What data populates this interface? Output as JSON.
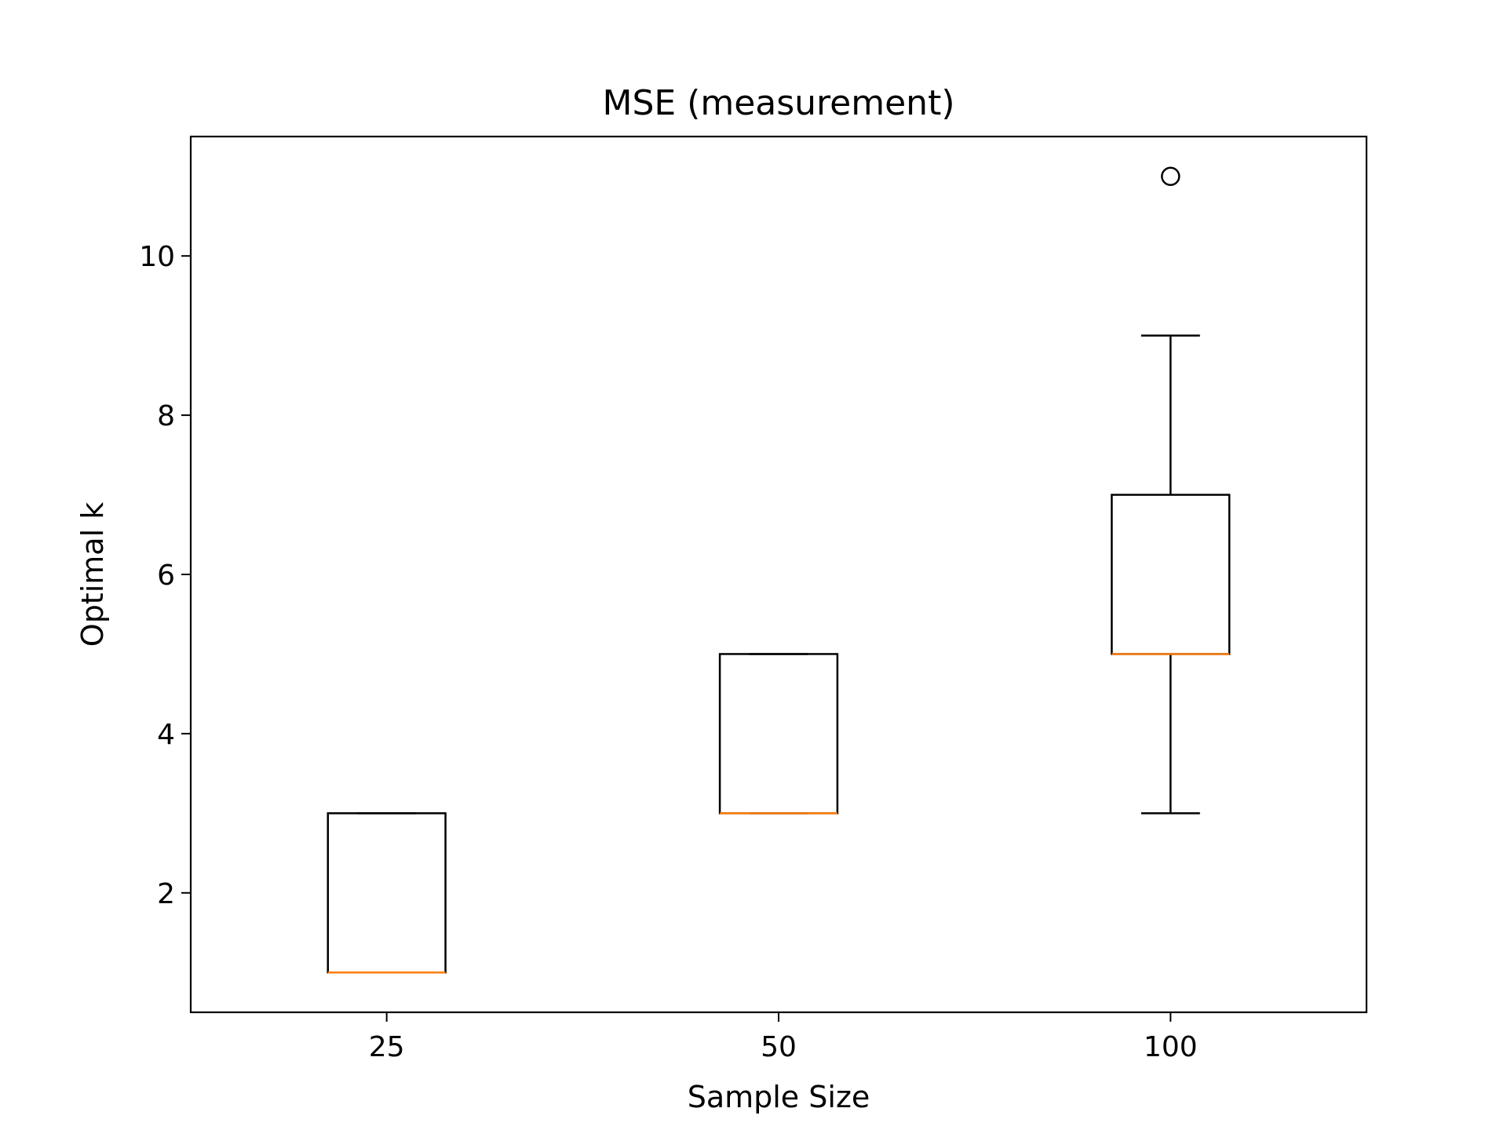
{
  "chart_data": {
    "type": "box",
    "title": "MSE (measurement)",
    "xlabel": "Sample Size",
    "ylabel": "Optimal k",
    "categories": [
      "25",
      "50",
      "100"
    ],
    "yticks": [
      2,
      4,
      6,
      8,
      10
    ],
    "ylim": [
      0.5,
      11.5
    ],
    "grid": false,
    "boxes": [
      {
        "category": "25",
        "whisker_low": 1,
        "q1": 1,
        "median": 1,
        "q3": 3,
        "whisker_high": 3,
        "outliers": []
      },
      {
        "category": "50",
        "whisker_low": 3,
        "q1": 3,
        "median": 3,
        "q3": 5,
        "whisker_high": 5,
        "outliers": []
      },
      {
        "category": "100",
        "whisker_low": 3,
        "q1": 5,
        "median": 5,
        "q3": 7,
        "whisker_high": 9,
        "outliers": [
          11
        ]
      }
    ],
    "colors": {
      "box": "#000000",
      "median": "#ff7f0e",
      "frame": "#000000"
    }
  }
}
